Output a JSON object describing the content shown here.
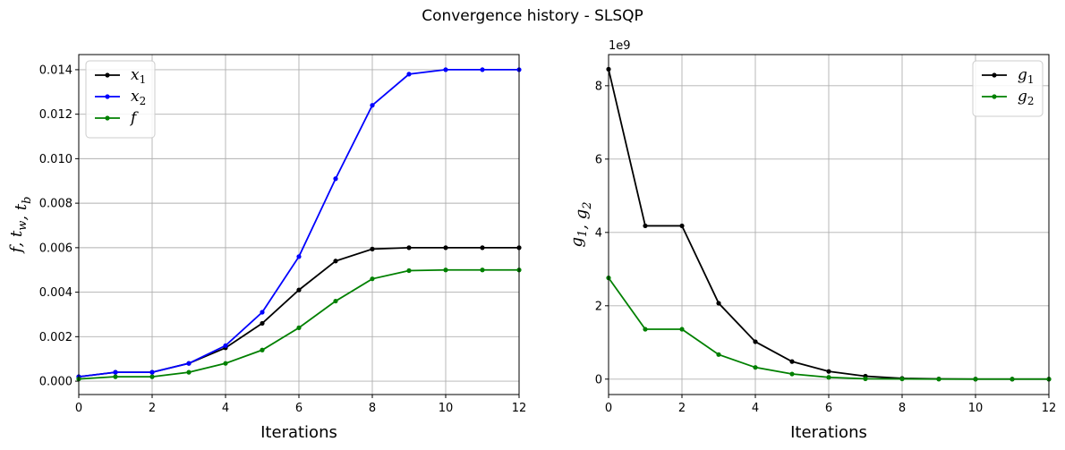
{
  "figure": {
    "title": "Convergence history - SLSQP"
  },
  "chart_data": [
    {
      "type": "line",
      "xlabel": "Iterations",
      "ylabel": {
        "parts": [
          [
            "f",
            ""
          ],
          [
            ", t",
            "w"
          ],
          [
            ", t",
            "b"
          ]
        ]
      },
      "xlim": [
        0,
        12
      ],
      "ylim": [
        -0.0006,
        0.01468
      ],
      "xticks": [
        "0",
        "2",
        "4",
        "6",
        "8",
        "10",
        "12"
      ],
      "xtick_values": [
        0,
        2,
        4,
        6,
        8,
        10,
        12
      ],
      "yticks": [
        "0.000",
        "0.002",
        "0.004",
        "0.006",
        "0.008",
        "0.010",
        "0.012",
        "0.014"
      ],
      "ytick_values": [
        0,
        0.002,
        0.004,
        0.006,
        0.008,
        0.01,
        0.012,
        0.014
      ],
      "offset_text": "",
      "grid": true,
      "legend_position": "upper-left",
      "x": [
        0,
        1,
        2,
        3,
        4,
        5,
        6,
        7,
        8,
        9,
        10,
        11,
        12
      ],
      "series": [
        {
          "name": "x",
          "sub": "1",
          "color": "#000000",
          "values": [
            0.0002,
            0.0004,
            0.0004,
            0.0008,
            0.0015,
            0.0026,
            0.0041,
            0.0054,
            0.00594,
            0.006,
            0.006,
            0.006,
            0.006
          ]
        },
        {
          "name": "x",
          "sub": "2",
          "color": "#0000ff",
          "values": [
            0.0002,
            0.0004,
            0.0004,
            0.0008,
            0.0016,
            0.0031,
            0.0056,
            0.0091,
            0.0124,
            0.0138,
            0.014,
            0.014,
            0.014
          ]
        },
        {
          "name": "f",
          "sub": "",
          "color": "#008000",
          "values": [
            0.0001,
            0.0002,
            0.0002,
            0.0004,
            0.0008,
            0.0014,
            0.0024,
            0.0036,
            0.0046,
            0.00497,
            0.005,
            0.005,
            0.005
          ]
        }
      ]
    },
    {
      "type": "line",
      "xlabel": "Iterations",
      "ylabel": {
        "parts": [
          [
            "g",
            "1"
          ],
          [
            ", g",
            "2"
          ]
        ]
      },
      "xlim": [
        0,
        12
      ],
      "ylim": [
        -0.42,
        8.85
      ],
      "xticks": [
        "0",
        "2",
        "4",
        "6",
        "8",
        "10",
        "12"
      ],
      "xtick_values": [
        0,
        2,
        4,
        6,
        8,
        10,
        12
      ],
      "yticks": [
        "0",
        "2",
        "4",
        "6",
        "8"
      ],
      "ytick_values": [
        0,
        2,
        4,
        6,
        8
      ],
      "offset_text": "1e9",
      "grid": true,
      "legend_position": "upper-right",
      "x": [
        0,
        1,
        2,
        3,
        4,
        5,
        6,
        7,
        8,
        9,
        10,
        11,
        12
      ],
      "series": [
        {
          "name": "g",
          "sub": "1",
          "color": "#000000",
          "values": [
            8.45,
            4.18,
            4.18,
            2.07,
            1.02,
            0.48,
            0.21,
            0.08,
            0.02,
            0.005,
            0.001,
            0.0,
            0.0
          ]
        },
        {
          "name": "g",
          "sub": "2",
          "color": "#008000",
          "values": [
            2.76,
            1.36,
            1.36,
            0.67,
            0.32,
            0.14,
            0.05,
            0.01,
            0.005,
            0.001,
            0.0,
            0.0,
            0.0
          ]
        }
      ]
    }
  ]
}
